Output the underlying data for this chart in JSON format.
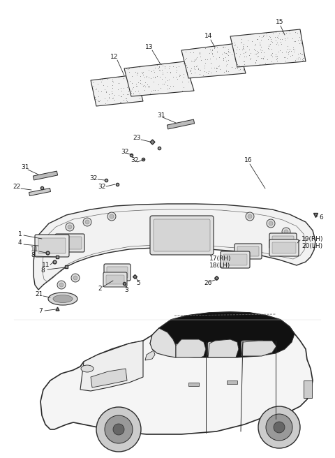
{
  "bg_color": "#ffffff",
  "line_color": "#2a2a2a",
  "fig_width": 4.8,
  "fig_height": 6.56,
  "dpi": 100,
  "label_fontsize": 6.5,
  "parts": {
    "pad12_label": "12",
    "pad13_label": "13",
    "pad14_label": "14",
    "pad15_label": "15",
    "headliner_label": "16",
    "labels_left": [
      "1",
      "4",
      "11",
      "8",
      "11",
      "8",
      "2",
      "3",
      "5",
      "21",
      "7",
      "22",
      "31",
      "31",
      "32",
      "32",
      "32",
      "32",
      "23",
      "26"
    ],
    "labels_right": [
      "6",
      "17(RH)",
      "18(LH)",
      "19(RH)",
      "20(LH)"
    ]
  }
}
